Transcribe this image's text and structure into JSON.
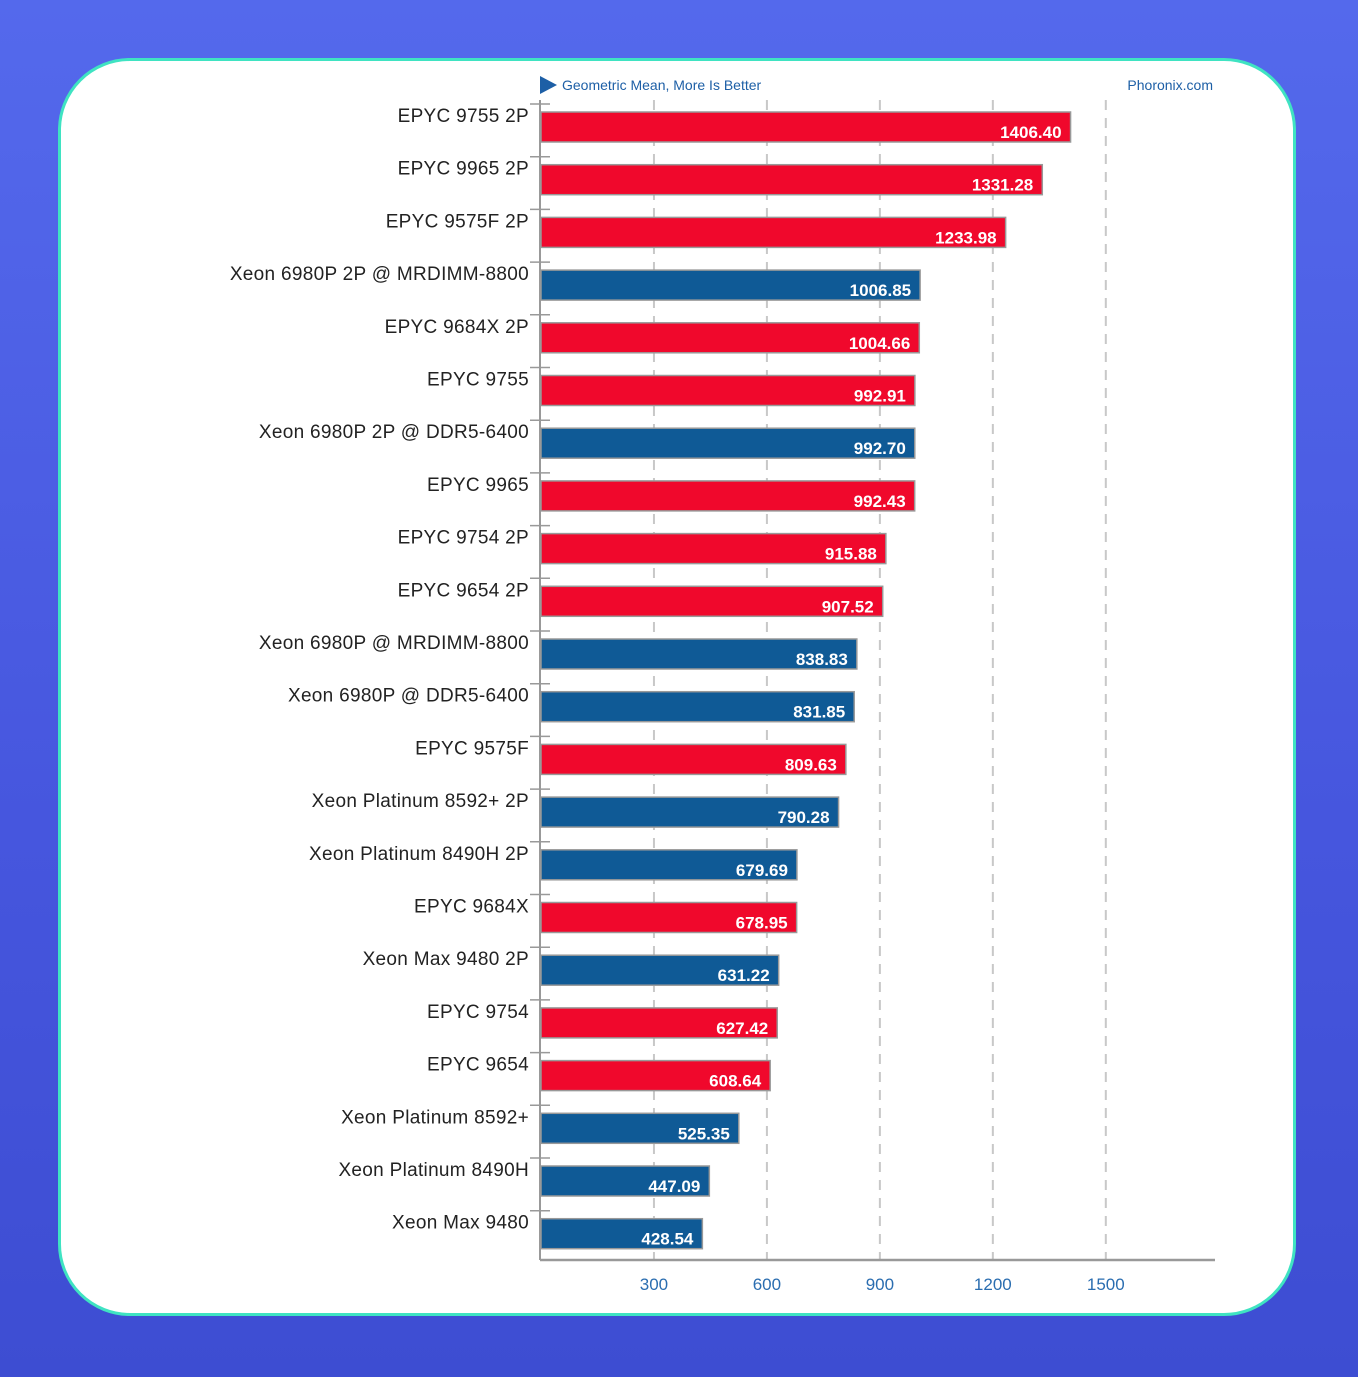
{
  "chart_data": {
    "type": "bar",
    "orientation": "horizontal",
    "subtitle": "Geometric Mean, More Is Better",
    "watermark": "Phoronix.com",
    "categories": [
      "EPYC 9755 2P",
      "EPYC 9965 2P",
      "EPYC 9575F 2P",
      "Xeon 6980P 2P @ MRDIMM-8800",
      "EPYC 9684X 2P",
      "EPYC 9755",
      "Xeon 6980P 2P @ DDR5-6400",
      "EPYC 9965",
      "EPYC 9754 2P",
      "EPYC 9654 2P",
      "Xeon 6980P @ MRDIMM-8800",
      "Xeon 6980P @ DDR5-6400",
      "EPYC 9575F",
      "Xeon Platinum 8592+ 2P",
      "Xeon Platinum 8490H 2P",
      "EPYC 9684X",
      "Xeon Max 9480 2P",
      "EPYC 9754",
      "EPYC 9654",
      "Xeon Platinum 8592+",
      "Xeon Platinum 8490H",
      "Xeon Max 9480"
    ],
    "values": [
      1406.4,
      1331.28,
      1233.98,
      1006.85,
      1004.66,
      992.91,
      992.7,
      992.43,
      915.88,
      907.52,
      838.83,
      831.85,
      809.63,
      790.28,
      679.69,
      678.95,
      631.22,
      627.42,
      608.64,
      525.35,
      447.09,
      428.54
    ],
    "value_labels": [
      "1406.40",
      "1331.28",
      "1233.98",
      "1006.85",
      "1004.66",
      "992.91",
      "992.70",
      "992.43",
      "915.88",
      "907.52",
      "838.83",
      "831.85",
      "809.63",
      "790.28",
      "679.69",
      "678.95",
      "631.22",
      "627.42",
      "608.64",
      "525.35",
      "447.09",
      "428.54"
    ],
    "vendor": [
      "amd",
      "amd",
      "amd",
      "intel",
      "amd",
      "amd",
      "intel",
      "amd",
      "amd",
      "amd",
      "intel",
      "intel",
      "amd",
      "intel",
      "intel",
      "amd",
      "intel",
      "amd",
      "amd",
      "intel",
      "intel",
      "intel"
    ],
    "colors": {
      "amd": "#f0082c",
      "intel": "#0f5a96"
    },
    "xticks": [
      300,
      600,
      900,
      1200,
      1500
    ],
    "xtick_labels": [
      "300",
      "600",
      "900",
      "1200",
      "1500"
    ],
    "xlim": [
      0,
      1790
    ],
    "grid": true,
    "xlabel": "",
    "ylabel": ""
  }
}
